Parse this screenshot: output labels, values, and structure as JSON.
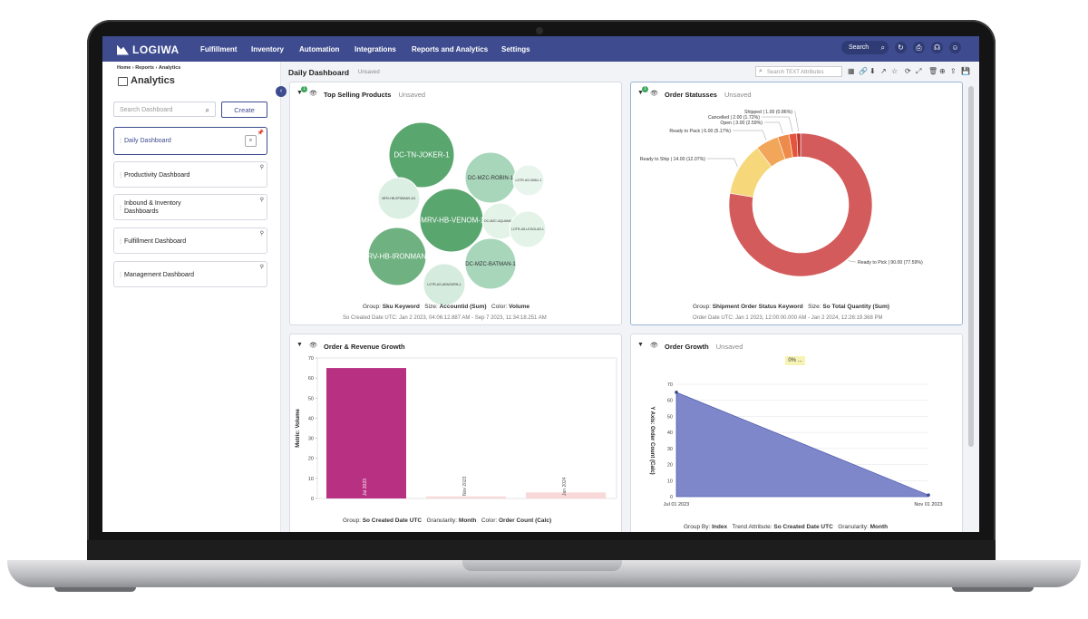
{
  "nav": {
    "logo": "LOGIWA",
    "items": [
      "Fulfillment",
      "Inventory",
      "Automation",
      "Integrations",
      "Reports and Analytics",
      "Settings"
    ],
    "search_label": "Search"
  },
  "sidebar": {
    "breadcrumb": {
      "home": "Home",
      "sep": "›",
      "reports": "Reports",
      "analytics": "Analytics"
    },
    "title": "Analytics",
    "search_placeholder": "Search Dashboard",
    "create_label": "Create",
    "items": [
      {
        "label": "Daily Dashboard",
        "active": true
      },
      {
        "label": "Productivity Dashboard"
      },
      {
        "label": "Inbound & Inventory Dashboards"
      },
      {
        "label": "Fulfillment Dashboard"
      },
      {
        "label": "Management Dashboard"
      }
    ]
  },
  "main": {
    "title": "Daily Dashboard",
    "state": "Unsaved",
    "attr_search_placeholder": "Search TEXT Attributes"
  },
  "cards": {
    "top_selling": {
      "title": "Top Selling Products",
      "state": "Unsaved",
      "badge": "1",
      "group_label": "Group:",
      "group_value": "Sku Keyword",
      "size_label": "Size:",
      "size_value": "Accountid (Sum)",
      "color_label": "Color:",
      "color_value": "Volume",
      "range": "So Created Date UTC: Jan 2 2023, 04:06:12.887 AM - Sep 7 2023, 11:34:18.251 AM"
    },
    "order_statuses": {
      "title": "Order Statusses",
      "state": "Unsaved",
      "badge": "1",
      "group_label": "Group:",
      "group_value": "Shipment Order Status Keyword",
      "size_label": "Size:",
      "size_value": "So Total Quantity (Sum)",
      "range": "Order Date UTC: Jan 1 2023, 12:00:00.000 AM - Jan 2 2024, 12:26:19.368 PM"
    },
    "order_revenue": {
      "title": "Order & Revenue Growth",
      "group_label": "Group:",
      "group_value": "So Created Date UTC",
      "gran_label": "Granularity:",
      "gran_value": "Month",
      "color_label": "Color:",
      "color_value": "Order Count (Calc)"
    },
    "order_growth": {
      "title": "Order Growth",
      "state": "Unsaved",
      "pct": "0% ...",
      "group_label": "Group By:",
      "group_value": "Index",
      "trend_label": "Trend Attribute:",
      "trend_value": "So Created Date UTC",
      "gran_label": "Granularity:",
      "gran_value": "Month"
    }
  },
  "chart_data": [
    {
      "type": "bubble",
      "bubbles": [
        {
          "label": "DC-TN-JOKER-1",
          "size": 36,
          "color": "#5aa66f"
        },
        {
          "label": "-MRV-HB-VENOM-1",
          "size": 35,
          "color": "#5aa66f"
        },
        {
          "label": "MRV-HB-IRONMAN-1",
          "size": 32,
          "color": "#6fb180"
        },
        {
          "label": "DC-MZC-ROBIN-1",
          "size": 28,
          "color": "#a8d6bb"
        },
        {
          "label": "DC-MZC-BATMAN-1",
          "size": 28,
          "color": "#a8d6bb"
        },
        {
          "label": "LOTR-AS-ARAGORN-1",
          "size": 23,
          "color": "#d4ebdd"
        },
        {
          "label": "MRV-HB-SPIDMAN-111",
          "size": 23,
          "color": "#dcefe3"
        },
        {
          "label": "DC-MZC-AQUAMAN-1",
          "size": 20,
          "color": "#e3f3e8"
        },
        {
          "label": "LOTR-AS-LEGOLAS-1",
          "size": 20,
          "color": "#e3f3e8"
        },
        {
          "label": "LOTR-AS-GIMLI-1",
          "size": 17,
          "color": "#e8f5ec"
        }
      ]
    },
    {
      "type": "pie",
      "slices": [
        {
          "label": "Ready to Pick | 90.00 (77.59%)",
          "value": 90.0,
          "color": "#d45b5b"
        },
        {
          "label": "Ready to Ship | 14.00 (12.07%)",
          "value": 14.0,
          "color": "#f6d77a"
        },
        {
          "label": "Ready to Pack | 6.00 (5.17%)",
          "value": 6.0,
          "color": "#f2a65a"
        },
        {
          "label": "Open | 3.00 (2.59%)",
          "value": 3.0,
          "color": "#ee8a4a"
        },
        {
          "label": "Cancelled | 2.00 (1.72%)",
          "value": 2.0,
          "color": "#e5553e"
        },
        {
          "label": "Shipped | 1.00 (0.86%)",
          "value": 1.0,
          "color": "#b8302a"
        }
      ]
    },
    {
      "type": "bar",
      "ylabel": "Metric: Volume",
      "ylim": [
        0,
        70
      ],
      "yticks": [
        0,
        10,
        20,
        30,
        40,
        50,
        60,
        70
      ],
      "categories": [
        "Jul 2023",
        "Nov 2023",
        "Jan 2024"
      ],
      "values": [
        65,
        1,
        3
      ],
      "colors": [
        "#b83082",
        "#f8d8d8",
        "#f8d8d8"
      ]
    },
    {
      "type": "area",
      "ylabel": "Y Axis: Order Count (Calc)",
      "ylim": [
        0,
        70
      ],
      "yticks": [
        0,
        10,
        20,
        30,
        40,
        50,
        60,
        70
      ],
      "x": [
        "Jul 01 2023",
        "Nov 01 2023"
      ],
      "values": [
        65,
        1
      ],
      "color": "#7d87c9"
    }
  ]
}
